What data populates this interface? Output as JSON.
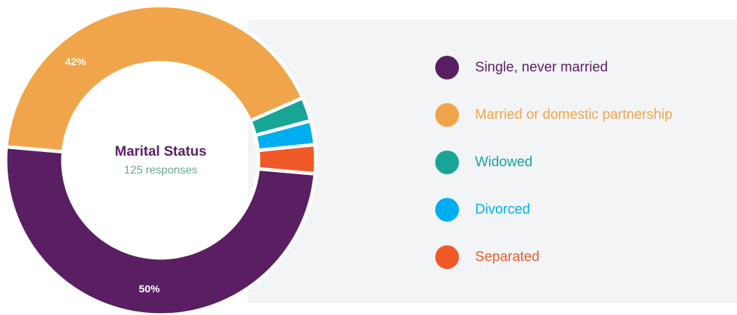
{
  "chart_data": {
    "type": "donut",
    "title": "Marital Status",
    "subtitle": "125 responses",
    "categories": [
      "Single, never married",
      "Married or domestic partnership",
      "Widowed",
      "Divorced",
      "Separated"
    ],
    "values": [
      50,
      42,
      2.5,
      2.5,
      3
    ],
    "value_labels": [
      "50%",
      "42%",
      null,
      null,
      null
    ],
    "colors": [
      "#5a1f63",
      "#f0a54a",
      "#16a596",
      "#00aeef",
      "#f05a28"
    ]
  }
}
